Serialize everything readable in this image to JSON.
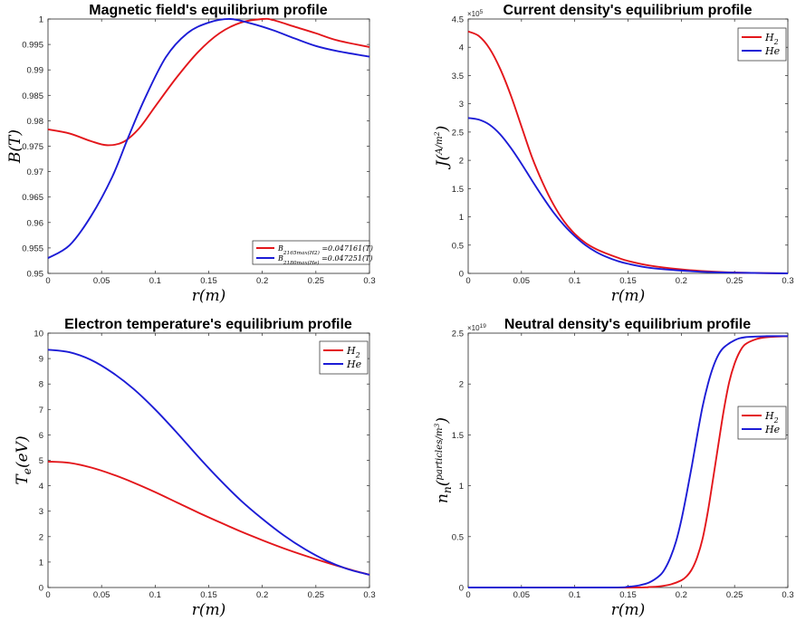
{
  "chart_data": [
    {
      "type": "line",
      "title": "Magnetic field's equilibrium profile",
      "xlabel": "r(m)",
      "ylabel": "B(T)",
      "xlim": [
        0,
        0.3
      ],
      "ylim": [
        0.95,
        1.0
      ],
      "xticks": [
        "0",
        "0.05",
        "0.1",
        "0.15",
        "0.2",
        "0.25",
        "0.3"
      ],
      "yticks": [
        "0.95",
        "0.955",
        "0.96",
        "0.965",
        "0.97",
        "0.975",
        "0.98",
        "0.985",
        "0.99",
        "0.995",
        "1"
      ],
      "legend_position": "bottom-right",
      "series": [
        {
          "name": "B_{2165_{max}(H_2)} =0.047161(T)",
          "color": "#e3161b",
          "x": [
            0,
            0.02,
            0.04,
            0.055,
            0.07,
            0.085,
            0.1,
            0.12,
            0.14,
            0.16,
            0.18,
            0.2,
            0.21,
            0.23,
            0.25,
            0.27,
            0.3
          ],
          "y": [
            0.9783,
            0.9775,
            0.976,
            0.9752,
            0.9758,
            0.9785,
            0.9828,
            0.9885,
            0.9935,
            0.9972,
            0.9993,
            1.0,
            0.9998,
            0.9985,
            0.9972,
            0.9958,
            0.9945
          ]
        },
        {
          "name": "B_{2180_{max}(He)} =0.047251(T)",
          "color": "#1c1cd6",
          "x": [
            0,
            0.02,
            0.04,
            0.06,
            0.075,
            0.09,
            0.11,
            0.13,
            0.15,
            0.17,
            0.19,
            0.21,
            0.23,
            0.25,
            0.27,
            0.3
          ],
          "y": [
            0.953,
            0.9555,
            0.9612,
            0.969,
            0.9768,
            0.9842,
            0.9925,
            0.9972,
            0.9993,
            1.0,
            0.9991,
            0.9978,
            0.9962,
            0.9947,
            0.9937,
            0.9926
          ]
        }
      ]
    },
    {
      "type": "line",
      "title": "Current density's equilibrium profile",
      "xlabel": "r(m)",
      "ylabel": "J(A/m^2)",
      "xlim": [
        0,
        0.3
      ],
      "ylim": [
        0,
        4.5
      ],
      "y_multiplier": "×10^5",
      "xticks": [
        "0",
        "0.05",
        "0.1",
        "0.15",
        "0.2",
        "0.25",
        "0.3"
      ],
      "yticks": [
        "0",
        "0.5",
        "1",
        "1.5",
        "2",
        "2.5",
        "3",
        "3.5",
        "4",
        "4.5"
      ],
      "legend_position": "top-right",
      "series": [
        {
          "name": "H_2",
          "color": "#e3161b",
          "x": [
            0,
            0.01,
            0.02,
            0.03,
            0.04,
            0.05,
            0.06,
            0.07,
            0.08,
            0.09,
            0.1,
            0.11,
            0.12,
            0.13,
            0.14,
            0.15,
            0.17,
            0.2,
            0.23,
            0.26,
            0.3
          ],
          "y": [
            4.28,
            4.2,
            3.98,
            3.62,
            3.15,
            2.6,
            2.05,
            1.6,
            1.22,
            0.92,
            0.7,
            0.54,
            0.43,
            0.35,
            0.28,
            0.22,
            0.14,
            0.07,
            0.03,
            0.01,
            0.0
          ]
        },
        {
          "name": "He",
          "color": "#1c1cd6",
          "x": [
            0,
            0.01,
            0.02,
            0.03,
            0.04,
            0.05,
            0.06,
            0.07,
            0.08,
            0.09,
            0.1,
            0.11,
            0.12,
            0.13,
            0.14,
            0.15,
            0.17,
            0.2,
            0.23,
            0.26,
            0.3
          ],
          "y": [
            2.75,
            2.72,
            2.63,
            2.46,
            2.22,
            1.94,
            1.64,
            1.35,
            1.08,
            0.85,
            0.66,
            0.5,
            0.38,
            0.29,
            0.22,
            0.17,
            0.1,
            0.05,
            0.02,
            0.01,
            0.0
          ]
        }
      ]
    },
    {
      "type": "line",
      "title": "Electron temperature's equilibrium profile",
      "xlabel": "r(m)",
      "ylabel": "T_e(eV)",
      "xlim": [
        0,
        0.3
      ],
      "ylim": [
        0,
        10
      ],
      "xticks": [
        "0",
        "0.05",
        "0.1",
        "0.15",
        "0.2",
        "0.25",
        "0.3"
      ],
      "yticks": [
        "0",
        "1",
        "2",
        "3",
        "4",
        "5",
        "6",
        "7",
        "8",
        "9",
        "10"
      ],
      "legend_position": "top-right",
      "series": [
        {
          "name": "H_2",
          "color": "#e3161b",
          "x": [
            0,
            0.02,
            0.04,
            0.06,
            0.08,
            0.1,
            0.12,
            0.14,
            0.16,
            0.18,
            0.2,
            0.22,
            0.24,
            0.26,
            0.28,
            0.3
          ],
          "y": [
            4.95,
            4.9,
            4.72,
            4.45,
            4.12,
            3.75,
            3.35,
            2.95,
            2.57,
            2.2,
            1.86,
            1.54,
            1.25,
            0.98,
            0.73,
            0.5
          ]
        },
        {
          "name": "He",
          "color": "#1c1cd6",
          "x": [
            0,
            0.02,
            0.04,
            0.06,
            0.08,
            0.1,
            0.12,
            0.14,
            0.16,
            0.18,
            0.2,
            0.22,
            0.24,
            0.26,
            0.28,
            0.3
          ],
          "y": [
            9.35,
            9.25,
            8.95,
            8.45,
            7.8,
            7.0,
            6.1,
            5.15,
            4.25,
            3.42,
            2.7,
            2.05,
            1.5,
            1.05,
            0.72,
            0.5
          ]
        }
      ]
    },
    {
      "type": "line",
      "title": "Neutral density's equilibrium profile",
      "xlabel": "r(m)",
      "ylabel": "n_n(particles/m^3)",
      "xlim": [
        0,
        0.3
      ],
      "ylim": [
        0,
        2.5
      ],
      "y_multiplier": "×10^19",
      "xticks": [
        "0",
        "0.05",
        "0.1",
        "0.15",
        "0.2",
        "0.25",
        "0.3"
      ],
      "yticks": [
        "0",
        "0.5",
        "1",
        "1.5",
        "2",
        "2.5"
      ],
      "legend_position": "right",
      "series": [
        {
          "name": "H_2",
          "color": "#e3161b",
          "x": [
            0,
            0.15,
            0.17,
            0.18,
            0.19,
            0.2,
            0.205,
            0.21,
            0.215,
            0.22,
            0.225,
            0.23,
            0.235,
            0.24,
            0.245,
            0.25,
            0.255,
            0.26,
            0.27,
            0.28,
            0.3
          ],
          "y": [
            0.0,
            0.0,
            0.005,
            0.012,
            0.03,
            0.07,
            0.11,
            0.18,
            0.3,
            0.48,
            0.75,
            1.08,
            1.42,
            1.75,
            2.02,
            2.2,
            2.32,
            2.39,
            2.44,
            2.46,
            2.47
          ]
        },
        {
          "name": "He",
          "color": "#1c1cd6",
          "x": [
            0,
            0.13,
            0.15,
            0.16,
            0.17,
            0.18,
            0.185,
            0.19,
            0.195,
            0.2,
            0.205,
            0.21,
            0.215,
            0.22,
            0.225,
            0.23,
            0.235,
            0.24,
            0.25,
            0.26,
            0.28,
            0.3
          ],
          "y": [
            0.0,
            0.0,
            0.008,
            0.02,
            0.05,
            0.12,
            0.19,
            0.3,
            0.45,
            0.66,
            0.92,
            1.2,
            1.5,
            1.78,
            2.0,
            2.17,
            2.29,
            2.36,
            2.43,
            2.46,
            2.47,
            2.47
          ]
        }
      ]
    }
  ]
}
